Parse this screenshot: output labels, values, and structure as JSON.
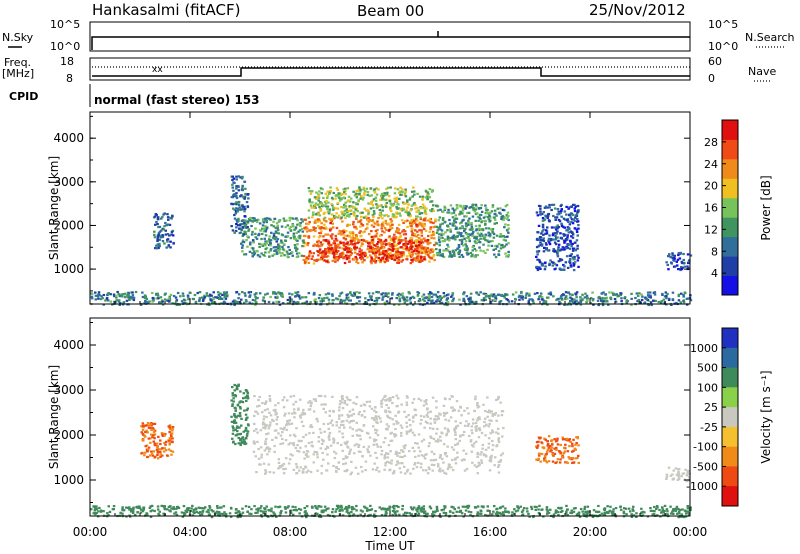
{
  "header": {
    "station": "Hankasalmi (fitACF)",
    "beam": "Beam 00",
    "date": "25/Nov/2012"
  },
  "top_panels": {
    "nsky_label": "N.Sky",
    "nsearch_label": "N.Search",
    "log_top": "10^5",
    "log_bottom": "10^0",
    "freq_label": "Freq.",
    "freq_unit": "[MHz]",
    "freq_ticks": [
      "18",
      "8"
    ],
    "nave_label": "Nave",
    "nave_ticks": [
      "60",
      "0"
    ],
    "cpid_label": "CPID",
    "cpid_text": "normal (fast stereo) 153"
  },
  "chart_data": [
    {
      "type": "heatmap",
      "name": "power",
      "ylabel": "Slant Range [km]",
      "xlabel": "",
      "x_ticks": [
        "00:00",
        "04:00",
        "08:00",
        "12:00",
        "16:00",
        "20:00",
        "00:00"
      ],
      "x_range_hours": [
        0,
        24
      ],
      "y_ticks": [
        1000,
        2000,
        3000,
        4000
      ],
      "ylim": [
        200,
        4600
      ],
      "colorbar": {
        "label": "Power [dB]",
        "ticks": [
          "4",
          "8",
          "12",
          "16",
          "20",
          "24",
          "28"
        ],
        "colors": [
          "#1410e6",
          "#1f3fa6",
          "#2f6f9a",
          "#3f9460",
          "#77c25a",
          "#f0c020",
          "#f08a1a",
          "#f04a16",
          "#e01010"
        ]
      },
      "regions": [
        {
          "t0": 8.5,
          "t1": 13.8,
          "r0": 1150,
          "r1": 2200,
          "value": 24
        },
        {
          "t0": 9.0,
          "t1": 13.5,
          "r0": 1200,
          "r1": 1700,
          "value": 28
        },
        {
          "t0": 6.0,
          "t1": 8.5,
          "r0": 1300,
          "r1": 2200,
          "value": 12
        },
        {
          "t0": 13.8,
          "t1": 16.7,
          "r0": 1300,
          "r1": 2500,
          "value": 12
        },
        {
          "t0": 8.7,
          "t1": 13.7,
          "r0": 2200,
          "r1": 2900,
          "value": 16
        },
        {
          "t0": 5.6,
          "t1": 6.3,
          "r0": 1800,
          "r1": 3150,
          "value": 8
        },
        {
          "t0": 2.5,
          "t1": 3.3,
          "r0": 1500,
          "r1": 2300,
          "value": 8
        },
        {
          "t0": 17.8,
          "t1": 19.5,
          "r0": 1000,
          "r1": 2500,
          "value": 6
        },
        {
          "t0": 23.0,
          "t1": 24.0,
          "r0": 1000,
          "r1": 1400,
          "value": 6
        },
        {
          "t0": 0.0,
          "t1": 24.0,
          "r0": 200,
          "r1": 500,
          "value": 10
        }
      ]
    },
    {
      "type": "heatmap",
      "name": "velocity",
      "ylabel": "Slant Range [km]",
      "xlabel": "Time UT",
      "x_ticks": [
        "00:00",
        "04:00",
        "08:00",
        "12:00",
        "16:00",
        "20:00",
        "00:00"
      ],
      "x_range_hours": [
        0,
        24
      ],
      "y_ticks": [
        1000,
        2000,
        3000,
        4000
      ],
      "ylim": [
        200,
        4600
      ],
      "colorbar": {
        "label": "Velocity [m s⁻¹]",
        "ticks": [
          "1000",
          "500",
          "100",
          "25",
          "-25",
          "-100",
          "-500",
          "-1000"
        ],
        "colors": [
          "#2030c0",
          "#2a6aa0",
          "#3f8a5a",
          "#8ad048",
          "#c8c8c0",
          "#f5c030",
          "#f08a18",
          "#f04a14",
          "#e01010"
        ]
      },
      "regions": [
        {
          "t0": 6.5,
          "t1": 16.5,
          "r0": 1150,
          "r1": 2900,
          "value": 0
        },
        {
          "t0": 5.6,
          "t1": 6.3,
          "r0": 1800,
          "r1": 3150,
          "value": 100
        },
        {
          "t0": 2.0,
          "t1": 3.3,
          "r0": 1500,
          "r1": 2300,
          "value": -300
        },
        {
          "t0": 17.8,
          "t1": 19.5,
          "r0": 1400,
          "r1": 2000,
          "value": -300
        },
        {
          "t0": 23.0,
          "t1": 24.0,
          "r0": 1000,
          "r1": 1300,
          "value": 0
        },
        {
          "t0": 0.0,
          "t1": 24.0,
          "r0": 200,
          "r1": 450,
          "value": 100
        }
      ]
    }
  ]
}
